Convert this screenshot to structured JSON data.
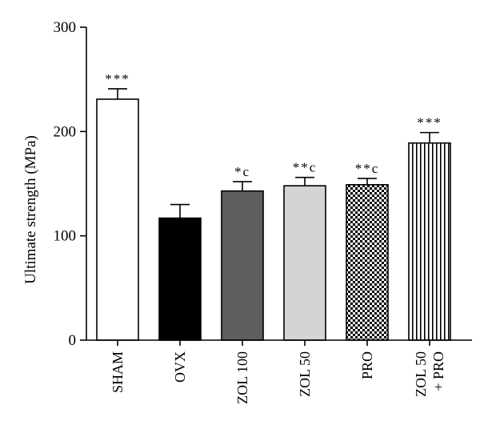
{
  "chart_data": {
    "type": "bar",
    "ylabel": "Ultimate strength (MPa)",
    "xlabel": "",
    "ylim": [
      0,
      300
    ],
    "yticks": [
      0,
      100,
      200,
      300
    ],
    "grid": false,
    "categories": [
      [
        "SHAM"
      ],
      [
        "OVX"
      ],
      [
        "ZOL 100"
      ],
      [
        "ZOL 50"
      ],
      [
        "PRO"
      ],
      [
        "ZOL 50",
        "+ PRO"
      ]
    ],
    "values": [
      231,
      117,
      143,
      148,
      149,
      189
    ],
    "errors": [
      10,
      13,
      9,
      8,
      6,
      10
    ],
    "annotations": [
      "***",
      "",
      "*c",
      "**c",
      "**c",
      "***"
    ],
    "fills": [
      "white",
      "black",
      "dark-gray",
      "light-gray",
      "checkerboard",
      "vertical-stripes"
    ],
    "colors": {
      "black": "#000000",
      "dark_gray": "#5f5f5f",
      "light_gray": "#d4d4d4",
      "white": "#ffffff"
    }
  }
}
